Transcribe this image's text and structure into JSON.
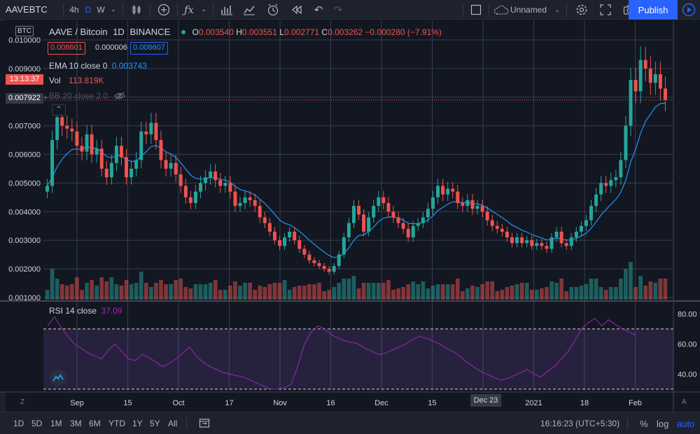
{
  "toolbar": {
    "symbol": "AAVEBTC",
    "intervals": [
      "4h",
      "D",
      "W"
    ],
    "layout_name": "Unnamed",
    "publish_label": "Publish"
  },
  "legend": {
    "pair": "AAVE / Bitcoin",
    "interval": "1D",
    "exchange": "BINANCE",
    "o_label": "O",
    "o_value": "0.003540",
    "h_label": "H",
    "h_value": "0.003551",
    "l_label": "L",
    "l_value": "0.002771",
    "c_label": "C",
    "c_value": "0.003262",
    "change": "−0.000280 (−7.91%)",
    "bid": "0.008601",
    "spread": "0.000006",
    "ask": "0.008607",
    "ema_label": "EMA 10 close 0",
    "ema_value": "0.003743",
    "vol_label": "Vol",
    "vol_value": "113.819K",
    "bb_label": "BB 20 close 2 0",
    "rsi_label": "RSI 14 close",
    "rsi_value": "37.09"
  },
  "price_axis": {
    "currency": "BTC",
    "countdown": "13:13:37",
    "last_price": "0.007922"
  },
  "time_axis": {
    "crosshair_label": "Dec 23"
  },
  "bottom": {
    "ranges": [
      "1D",
      "5D",
      "1M",
      "3M",
      "6M",
      "YTD",
      "1Y",
      "5Y",
      "All"
    ],
    "clock": "16:16:23 (UTC+5:30)",
    "percent": "%",
    "log": "log",
    "auto": "auto"
  },
  "colors": {
    "up": "#26a69a",
    "down": "#ef5350",
    "ema": "#2196f3",
    "rsi": "#9c27b0",
    "publish": "#2962ff",
    "background": "#131722"
  },
  "chart_data": [
    {
      "type": "candlestick",
      "title": "AAVE / Bitcoin 1D BINANCE",
      "ylabel": "BTC",
      "ylim": [
        0.001,
        0.01
      ],
      "y_ticks": [
        "0.010000",
        "0.009000",
        "0.008000",
        "0.007000",
        "0.006000",
        "0.005000",
        "0.004000",
        "0.003000",
        "0.002000",
        "0.001000"
      ],
      "x_ticks": [
        "Sep",
        "15",
        "Oct",
        "17",
        "Nov",
        "16",
        "Dec",
        "15",
        "Dec 23",
        "2021",
        "18",
        "Feb"
      ],
      "close": [
        0.0049,
        0.0065,
        0.0073,
        0.007,
        0.0069,
        0.0068,
        0.0063,
        0.0061,
        0.0067,
        0.006,
        0.0062,
        0.0055,
        0.0052,
        0.0057,
        0.0063,
        0.0059,
        0.0052,
        0.0055,
        0.0058,
        0.0068,
        0.0067,
        0.0071,
        0.0065,
        0.0058,
        0.0055,
        0.0057,
        0.0053,
        0.0049,
        0.0045,
        0.0043,
        0.0047,
        0.005,
        0.0052,
        0.0054,
        0.0051,
        0.0049,
        0.005,
        0.0047,
        0.0042,
        0.0043,
        0.0045,
        0.0044,
        0.0042,
        0.0038,
        0.0036,
        0.0033,
        0.003,
        0.0028,
        0.0031,
        0.0033,
        0.003,
        0.0027,
        0.0025,
        0.0023,
        0.0022,
        0.0021,
        0.002,
        0.0019,
        0.0021,
        0.0025,
        0.0031,
        0.0036,
        0.0042,
        0.0039,
        0.0033,
        0.0038,
        0.0042,
        0.0045,
        0.0043,
        0.004,
        0.0038,
        0.0036,
        0.0034,
        0.0031,
        0.0035,
        0.0036,
        0.0038,
        0.0041,
        0.0045,
        0.0049,
        0.0046,
        0.0048,
        0.0047,
        0.0043,
        0.0042,
        0.0044,
        0.0041,
        0.0042,
        0.004,
        0.0037,
        0.0035,
        0.0034,
        0.0033,
        0.0031,
        0.0029,
        0.0031,
        0.0029,
        0.003,
        0.0028,
        0.0029,
        0.0028,
        0.0027,
        0.0031,
        0.0033,
        0.0029,
        0.0028,
        0.0031,
        0.0033,
        0.0035,
        0.0037,
        0.0042,
        0.0046,
        0.005,
        0.0049,
        0.0051,
        0.0052,
        0.0058,
        0.007,
        0.0086,
        0.0082,
        0.0093,
        0.009,
        0.0085,
        0.0088,
        0.0083,
        0.0079
      ]
    },
    {
      "type": "bar",
      "title": "Vol",
      "value": "113.819K"
    },
    {
      "type": "line",
      "title": "RSI 14 close",
      "current": 37.09,
      "ylim": [
        30,
        82
      ],
      "y_ticks": [
        "80.00",
        "60.00",
        "40.00"
      ],
      "bands": [
        30,
        70
      ],
      "values": [
        72,
        78,
        71,
        65,
        60,
        57,
        54,
        52,
        50,
        56,
        60,
        55,
        50,
        49,
        53,
        51,
        48,
        45,
        47,
        50,
        54,
        58,
        52,
        48,
        45,
        43,
        41,
        40,
        39,
        38,
        36,
        34,
        32,
        30,
        30,
        31,
        33,
        45,
        60,
        68,
        72,
        70,
        66,
        64,
        62,
        61,
        60,
        57,
        55,
        53,
        54,
        56,
        58,
        60,
        63,
        65,
        64,
        62,
        60,
        57,
        55,
        52,
        48,
        45,
        42,
        40,
        38,
        36,
        37,
        39,
        41,
        43,
        40,
        38,
        42,
        45,
        50,
        55,
        62,
        70,
        74,
        77,
        72,
        76,
        73,
        70,
        68,
        66
      ]
    }
  ]
}
